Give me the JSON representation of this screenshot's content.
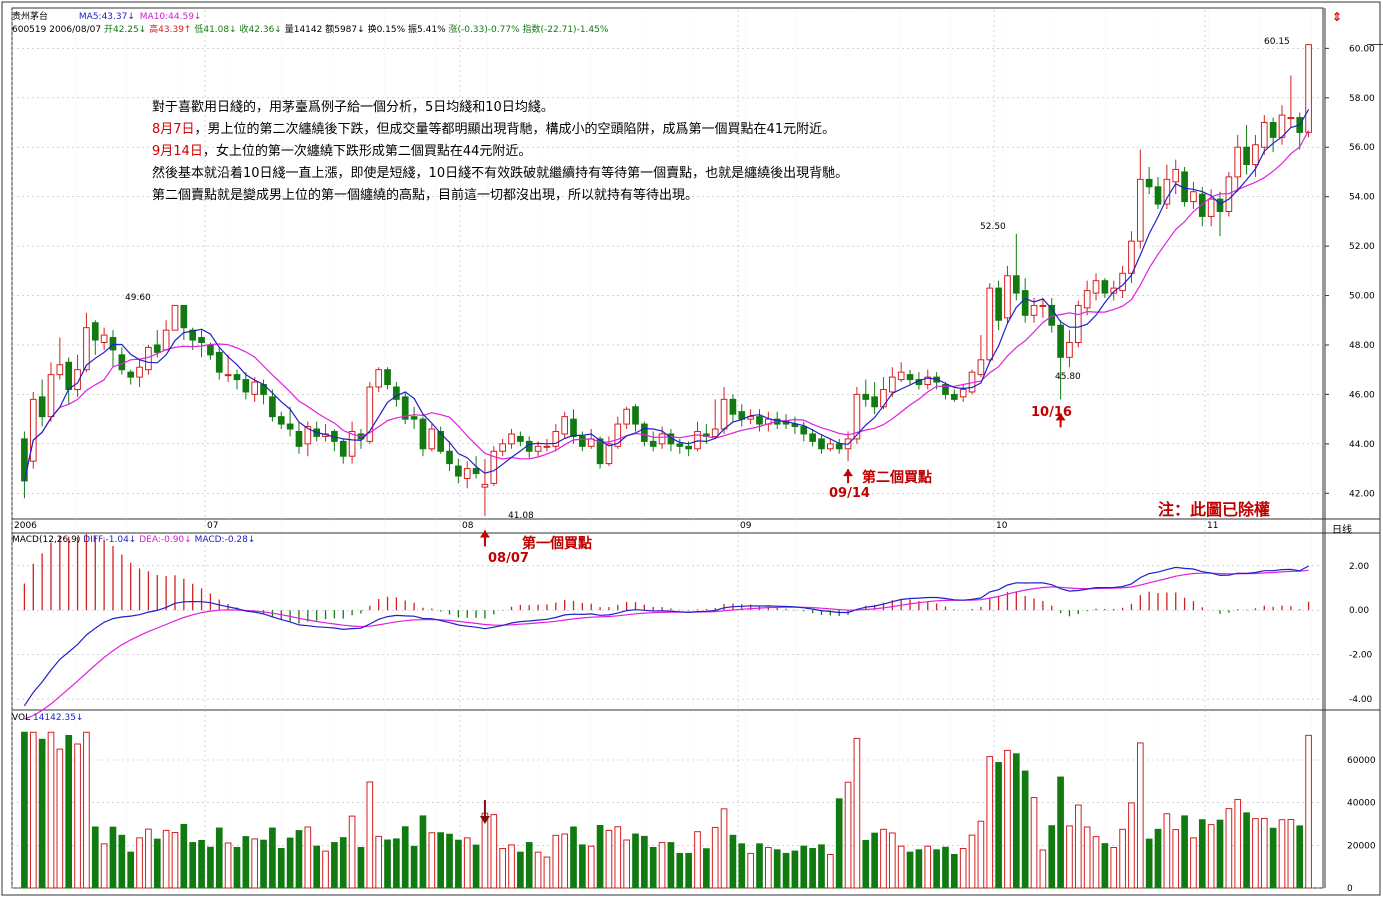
{
  "header": {
    "stock_name": "贵州茅台",
    "ma5": "MA5:43.37↓",
    "ma10": "MA10:44.59↓",
    "line2_prefix": "600519 2006/08/07",
    "open": "开42.25↓",
    "high": "高43.39↑",
    "low": "低41.08↓",
    "close": "收42.36↓",
    "volume": "量14142",
    "amount": "额5987↓",
    "turnover": "换0.15%",
    "amplitude": "振5.41%",
    "change": "涨(-0.33)-0.77%",
    "index": "指数(-22.71)-1.45%"
  },
  "notes": {
    "line1": "對于喜歡用日綫的，用茅臺爲例子給一個分析，5日均綫和10日均綫。",
    "line2_date": "8月7日",
    "line2_rest": "，男上位的第二次纏繞後下跌，但成交量等都明顯出現背馳，構成小的空頭陷阱，成爲第一個買點在41元附近。",
    "line3_date": "9月14日",
    "line3_rest": "，女上位的第一次纏繞下跌形成第二個買點在44元附近。",
    "line4": "然後基本就沿着10日綫一直上漲，即使是短綫，10日綫不有效跌破就繼續持有等待第一個賣點，也就是纏繞後出現背馳。",
    "line5": "第二個賣點就是變成男上位的第一個纏繞的高點，目前這一切都沒出現，所以就持有等待出現。"
  },
  "annotations": {
    "buy1_label": "第一個買點",
    "buy1_date": "08/07",
    "buy2_label": "第二個買點",
    "buy2_date": "09/14",
    "date_1016": "10/16",
    "footnote": "注：此圖已除權",
    "price_high_1": "49.60",
    "price_high_2": "52.50",
    "price_high_3": "60.15",
    "price_low_1": "41.08",
    "price_low_2": "45.80"
  },
  "x_axis": {
    "labels": [
      "2006",
      "07",
      "08",
      "09",
      "10",
      "11"
    ],
    "period": "日线"
  },
  "macd": {
    "title": "MACD(12,26,9)",
    "diff": "DIFF:-1.04↓",
    "dea": "DEA:-0.90↓",
    "macd": "MACD:-0.28↓"
  },
  "vol": {
    "title": "VOL",
    "value": "14142.35↓"
  },
  "colors": {
    "up": "#d42020",
    "down": "#117a11",
    "ma5": "#2020c8",
    "ma10": "#e020e0",
    "grid": "#b8b8b8",
    "note_red": "#d00000"
  },
  "chart_data": {
    "type": "candlestick",
    "price_axis": {
      "ticks": [
        "42.00",
        "44.00",
        "46.00",
        "48.00",
        "50.00",
        "52.00",
        "54.00",
        "56.00",
        "58.00",
        "60.00"
      ],
      "ylim": [
        41,
        60.5
      ]
    },
    "macd_axis": {
      "ticks": [
        "2.00",
        "0.00",
        "-2.00",
        "-4.00"
      ],
      "ylim": [
        -4.4,
        2.8
      ]
    },
    "vol_axis": {
      "ticks": [
        "60000",
        "40000",
        "20000",
        "0"
      ],
      "ylim": [
        0,
        75000
      ]
    },
    "candles": [
      [
        44.2,
        42.5,
        44.5,
        41.8
      ],
      [
        43.3,
        45.8,
        46.1,
        43.0
      ],
      [
        45.9,
        45.1,
        46.6,
        44.7
      ],
      [
        45.1,
        46.8,
        47.3,
        44.9
      ],
      [
        46.8,
        47.2,
        48.3,
        46.6
      ],
      [
        47.3,
        46.2,
        47.5,
        45.6
      ],
      [
        46.2,
        47.0,
        47.6,
        45.9
      ],
      [
        47.0,
        48.7,
        49.3,
        46.9
      ],
      [
        48.9,
        48.2,
        49.0,
        47.6
      ],
      [
        48.1,
        48.4,
        48.7,
        47.8
      ],
      [
        48.3,
        47.8,
        48.6,
        47.1
      ],
      [
        47.6,
        47.0,
        47.9,
        46.8
      ],
      [
        46.9,
        46.7,
        47.0,
        46.4
      ],
      [
        46.7,
        47.1,
        47.4,
        46.3
      ],
      [
        47.0,
        47.9,
        48.0,
        46.8
      ],
      [
        48.0,
        47.7,
        48.6,
        47.5
      ],
      [
        47.8,
        48.6,
        49.0,
        47.8
      ],
      [
        48.6,
        49.6,
        49.6,
        48.6
      ],
      [
        49.6,
        48.7,
        49.6,
        48.2
      ],
      [
        48.6,
        48.2,
        48.7,
        47.8
      ],
      [
        48.3,
        48.1,
        48.6,
        47.5
      ],
      [
        48.0,
        47.6,
        48.1,
        47.4
      ],
      [
        47.7,
        46.9,
        47.9,
        46.6
      ],
      [
        46.8,
        46.8,
        47.6,
        46.5
      ],
      [
        46.8,
        46.6,
        47.0,
        46.2
      ],
      [
        46.6,
        46.1,
        46.9,
        45.8
      ],
      [
        46.0,
        46.5,
        46.7,
        45.7
      ],
      [
        46.4,
        46.0,
        46.6,
        45.6
      ],
      [
        45.9,
        45.1,
        46.2,
        44.9
      ],
      [
        45.1,
        44.8,
        45.3,
        44.6
      ],
      [
        44.8,
        44.6,
        45.5,
        44.3
      ],
      [
        44.5,
        43.9,
        44.9,
        43.6
      ],
      [
        44.0,
        44.7,
        44.9,
        43.5
      ],
      [
        44.6,
        44.3,
        44.9,
        44.1
      ],
      [
        44.3,
        44.4,
        44.8,
        44.1
      ],
      [
        44.5,
        44.1,
        44.6,
        43.7
      ],
      [
        44.1,
        43.5,
        44.2,
        43.2
      ],
      [
        43.5,
        44.5,
        44.9,
        43.2
      ],
      [
        44.4,
        44.2,
        44.6,
        43.8
      ],
      [
        44.1,
        46.3,
        46.5,
        44.0
      ],
      [
        46.3,
        47.0,
        47.1,
        46.1
      ],
      [
        47.0,
        46.4,
        47.1,
        46.2
      ],
      [
        46.3,
        45.8,
        46.5,
        45.5
      ],
      [
        45.9,
        45.0,
        46.1,
        44.8
      ],
      [
        45.1,
        45.0,
        45.5,
        44.6
      ],
      [
        45.0,
        43.8,
        45.1,
        43.5
      ],
      [
        43.8,
        44.6,
        44.8,
        43.7
      ],
      [
        44.5,
        43.7,
        44.7,
        43.6
      ],
      [
        43.7,
        43.2,
        44.1,
        42.9
      ],
      [
        43.1,
        42.7,
        43.4,
        42.4
      ],
      [
        42.6,
        43.0,
        43.3,
        42.2
      ],
      [
        43.0,
        42.8,
        43.5,
        42.6
      ],
      [
        42.25,
        42.36,
        43.39,
        41.08
      ],
      [
        42.4,
        43.7,
        43.9,
        42.3
      ],
      [
        43.7,
        44.0,
        44.2,
        43.5
      ],
      [
        44.0,
        44.4,
        44.6,
        43.8
      ],
      [
        44.3,
        44.1,
        44.5,
        43.9
      ],
      [
        44.1,
        43.7,
        44.3,
        43.4
      ],
      [
        43.7,
        43.9,
        44.1,
        43.5
      ],
      [
        43.9,
        43.9,
        44.2,
        43.7
      ],
      [
        43.9,
        44.5,
        44.8,
        43.7
      ],
      [
        44.4,
        45.1,
        45.3,
        44.2
      ],
      [
        45.0,
        44.3,
        45.4,
        44.0
      ],
      [
        44.3,
        43.9,
        44.5,
        43.7
      ],
      [
        43.9,
        44.2,
        44.6,
        43.8
      ],
      [
        44.2,
        43.2,
        44.3,
        43.0
      ],
      [
        43.2,
        44.0,
        44.3,
        43.1
      ],
      [
        43.9,
        44.8,
        45.1,
        43.8
      ],
      [
        44.8,
        45.4,
        45.5,
        44.6
      ],
      [
        45.5,
        44.8,
        45.6,
        44.5
      ],
      [
        44.8,
        44.1,
        44.9,
        43.9
      ],
      [
        44.1,
        43.9,
        44.5,
        43.7
      ],
      [
        44.0,
        44.4,
        44.7,
        43.8
      ],
      [
        44.4,
        44.0,
        44.6,
        43.7
      ],
      [
        44.0,
        43.9,
        44.2,
        43.6
      ],
      [
        43.9,
        43.8,
        44.1,
        43.5
      ],
      [
        43.8,
        44.5,
        44.9,
        43.7
      ],
      [
        44.4,
        44.3,
        44.8,
        44.0
      ],
      [
        44.3,
        44.6,
        45.8,
        44.2
      ],
      [
        44.6,
        45.8,
        46.3,
        44.4
      ],
      [
        45.8,
        45.2,
        46.0,
        44.9
      ],
      [
        45.3,
        45.0,
        45.6,
        44.7
      ],
      [
        45.0,
        45.1,
        45.4,
        44.8
      ],
      [
        45.1,
        44.8,
        45.4,
        44.5
      ],
      [
        44.8,
        45.0,
        45.3,
        44.5
      ],
      [
        45.0,
        44.8,
        45.3,
        44.6
      ],
      [
        44.9,
        44.8,
        45.2,
        44.6
      ],
      [
        44.8,
        44.7,
        45.1,
        44.4
      ],
      [
        44.7,
        44.4,
        44.9,
        44.1
      ],
      [
        44.4,
        44.1,
        44.6,
        43.9
      ],
      [
        44.2,
        43.8,
        44.4,
        43.6
      ],
      [
        43.8,
        44.0,
        44.2,
        43.7
      ],
      [
        44.0,
        43.8,
        44.2,
        43.6
      ],
      [
        43.8,
        44.2,
        44.5,
        43.3
      ],
      [
        44.2,
        46.0,
        46.3,
        44.0
      ],
      [
        46.0,
        45.8,
        46.6,
        45.5
      ],
      [
        45.9,
        45.5,
        46.5,
        45.2
      ],
      [
        45.5,
        46.2,
        46.7,
        45.4
      ],
      [
        46.1,
        46.7,
        47.1,
        45.9
      ],
      [
        46.6,
        46.9,
        47.3,
        46.5
      ],
      [
        46.8,
        46.6,
        47.0,
        46.4
      ],
      [
        46.6,
        46.4,
        46.9,
        46.2
      ],
      [
        46.4,
        46.7,
        47.0,
        46.2
      ],
      [
        46.7,
        46.5,
        46.9,
        46.2
      ],
      [
        46.4,
        46.0,
        46.5,
        45.8
      ],
      [
        46.0,
        45.8,
        46.2,
        45.7
      ],
      [
        45.9,
        46.2,
        46.4,
        45.7
      ],
      [
        46.1,
        46.9,
        47.0,
        46.0
      ],
      [
        46.8,
        47.4,
        48.4,
        46.7
      ],
      [
        47.4,
        50.3,
        50.5,
        47.3
      ],
      [
        50.3,
        49.0,
        50.6,
        48.6
      ],
      [
        49.1,
        50.8,
        51.2,
        48.9
      ],
      [
        50.8,
        50.1,
        52.5,
        49.8
      ],
      [
        50.2,
        49.2,
        50.7,
        48.9
      ],
      [
        49.2,
        49.6,
        49.9,
        48.9
      ],
      [
        49.6,
        49.6,
        49.9,
        49.1
      ],
      [
        49.6,
        48.8,
        49.9,
        48.5
      ],
      [
        48.8,
        47.5,
        49.0,
        45.8
      ],
      [
        47.5,
        48.1,
        48.6,
        47.1
      ],
      [
        48.1,
        49.6,
        49.8,
        47.9
      ],
      [
        49.5,
        50.2,
        50.6,
        49.2
      ],
      [
        50.1,
        50.6,
        50.9,
        49.8
      ],
      [
        50.6,
        50.1,
        50.7,
        49.9
      ],
      [
        50.1,
        50.3,
        50.6,
        49.8
      ],
      [
        50.2,
        50.9,
        51.2,
        49.9
      ],
      [
        50.9,
        52.2,
        52.6,
        50.5
      ],
      [
        52.2,
        54.7,
        55.9,
        51.9
      ],
      [
        54.7,
        54.4,
        55.2,
        54.1
      ],
      [
        54.4,
        53.7,
        54.8,
        53.5
      ],
      [
        53.7,
        54.7,
        55.3,
        53.5
      ],
      [
        54.6,
        55.1,
        55.5,
        54.1
      ],
      [
        55.0,
        53.8,
        55.2,
        53.6
      ],
      [
        53.8,
        54.2,
        54.6,
        53.5
      ],
      [
        54.1,
        53.2,
        54.4,
        52.8
      ],
      [
        53.2,
        53.9,
        54.3,
        52.8
      ],
      [
        53.9,
        53.4,
        54.2,
        52.4
      ],
      [
        53.4,
        54.8,
        55.0,
        53.2
      ],
      [
        54.8,
        56.0,
        56.5,
        54.2
      ],
      [
        56.0,
        55.3,
        56.9,
        54.9
      ],
      [
        55.3,
        56.1,
        56.5,
        54.8
      ],
      [
        56.0,
        57.0,
        57.3,
        55.7
      ],
      [
        57.0,
        56.4,
        57.2,
        55.8
      ],
      [
        56.4,
        57.3,
        57.7,
        56.1
      ],
      [
        57.2,
        57.2,
        58.9,
        56.8
      ],
      [
        57.2,
        56.6,
        57.4,
        55.9
      ],
      [
        56.6,
        60.15,
        60.15,
        56.4
      ]
    ]
  }
}
